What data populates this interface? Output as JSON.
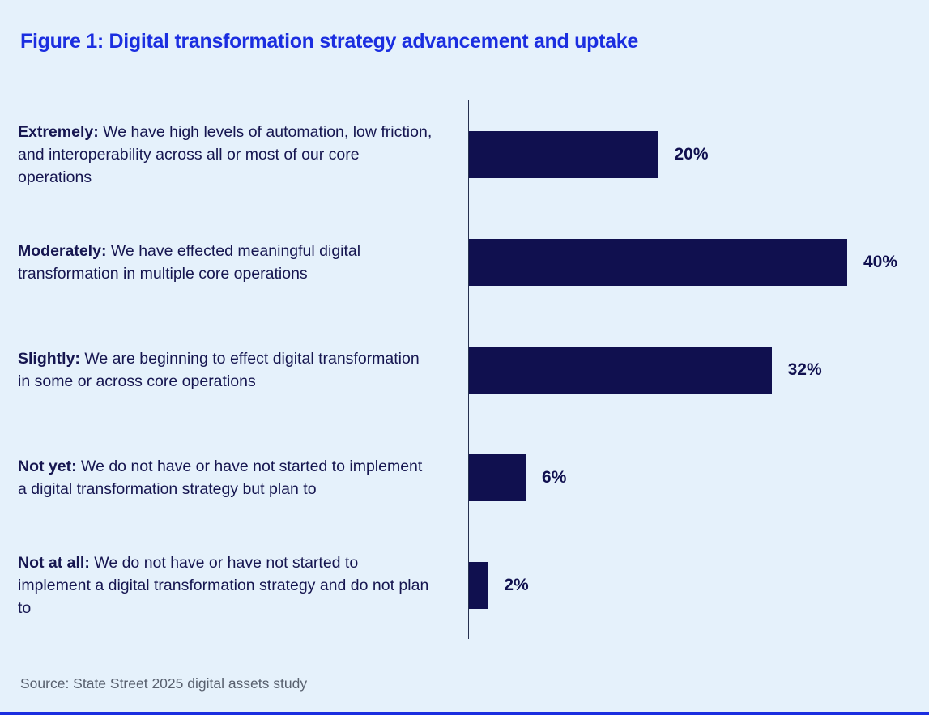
{
  "colors": {
    "background": "#E5F1FB",
    "title": "#1B2EE0",
    "bar": "#10104F",
    "label_text": "#161650",
    "value_text": "#10104F",
    "axis_line": "#26304F",
    "source_text": "#59616F",
    "bottom_strip": "#1B2EE0"
  },
  "title": "Figure 1: Digital transformation strategy advancement and uptake",
  "source": "Source: State Street 2025 digital assets study",
  "chart_data": {
    "type": "bar",
    "orientation": "horizontal",
    "title": "Figure 1: Digital transformation strategy advancement and uptake",
    "categories": [
      "Extremely",
      "Moderately",
      "Slightly",
      "Not yet",
      "Not at all"
    ],
    "values": [
      20,
      40,
      32,
      6,
      2
    ],
    "value_labels": [
      "20%",
      "40%",
      "32%",
      "6%",
      "2%"
    ],
    "xlim": [
      0,
      42
    ],
    "grid": false,
    "legend": false,
    "rows": [
      {
        "label": "Extremely:",
        "description": "We have high levels of automation, low friction, and interoperability across all or most of our core operations",
        "value": 20,
        "value_label": "20%"
      },
      {
        "label": "Moderately:",
        "description": "We have effected meaningful digital transformation in multiple core operations",
        "value": 40,
        "value_label": "40%"
      },
      {
        "label": "Slightly:",
        "description": "We are beginning to effect digital transformation in some or across core operations",
        "value": 32,
        "value_label": "32%"
      },
      {
        "label": "Not yet:",
        "description": "We do not have or have not started to implement a digital transformation strategy but plan to",
        "value": 6,
        "value_label": "6%"
      },
      {
        "label": "Not at all:",
        "description": "We do not have or have not started to implement a digital transformation strategy and do not plan to",
        "value": 2,
        "value_label": "2%"
      }
    ],
    "source": "Source: State Street 2025 digital assets study"
  }
}
